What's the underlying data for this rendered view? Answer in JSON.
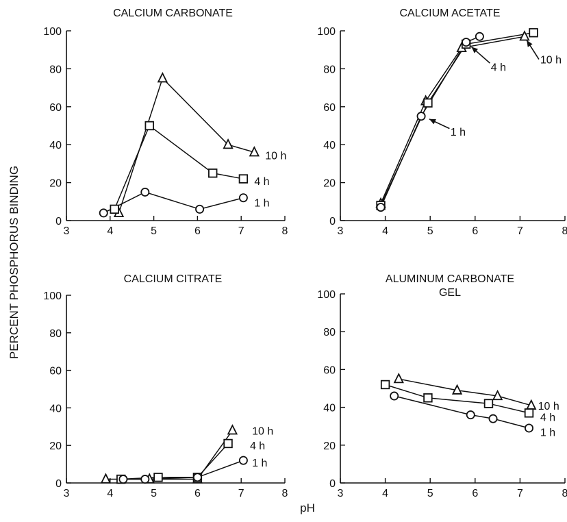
{
  "figure": {
    "ylabel": "PERCENT PHOSPHORUS BINDING",
    "xlabel": "pH"
  },
  "chart_data": [
    {
      "type": "line",
      "title": "CALCIUM CARBONATE",
      "xlim": [
        3,
        8
      ],
      "ylim": [
        0,
        100
      ],
      "xticks": [
        3,
        4,
        5,
        6,
        7,
        8
      ],
      "yticks": [
        0,
        20,
        40,
        60,
        80,
        100
      ],
      "ytick_labels_shown": true,
      "series": [
        {
          "name": "10 h",
          "marker": "triangle",
          "x": [
            4.2,
            5.2,
            6.7,
            7.3
          ],
          "y": [
            4,
            75,
            40,
            36
          ]
        },
        {
          "name": "4 h",
          "marker": "square",
          "x": [
            4.1,
            4.9,
            6.35,
            7.05
          ],
          "y": [
            6,
            50,
            25,
            22
          ]
        },
        {
          "name": "1 h",
          "marker": "circle",
          "x": [
            3.85,
            4.8,
            6.05,
            7.05
          ],
          "y": [
            4,
            15,
            6,
            12
          ]
        }
      ],
      "labels": [
        {
          "text": "10 h",
          "x": 7.55,
          "y": 34.5
        },
        {
          "text": "4 h",
          "x": 7.3,
          "y": 21
        },
        {
          "text": "1 h",
          "x": 7.3,
          "y": 9.5
        }
      ]
    },
    {
      "type": "line",
      "title": "CALCIUM ACETATE",
      "xlim": [
        3,
        8
      ],
      "ylim": [
        0,
        100
      ],
      "xticks": [
        3,
        4,
        5,
        6,
        7,
        8
      ],
      "yticks": [
        0,
        20,
        40,
        60,
        80,
        100
      ],
      "ytick_labels_shown": true,
      "series": [
        {
          "name": "10 h",
          "marker": "triangle",
          "x": [
            3.9,
            4.9,
            5.7,
            7.1
          ],
          "y": [
            9,
            63,
            91,
            97
          ]
        },
        {
          "name": "4 h",
          "marker": "square",
          "x": [
            3.9,
            4.95,
            5.8,
            7.3
          ],
          "y": [
            8,
            62,
            93,
            99
          ]
        },
        {
          "name": "1 h",
          "marker": "circle",
          "x": [
            3.9,
            4.8,
            5.8,
            6.1
          ],
          "y": [
            7,
            55,
            94,
            97
          ]
        }
      ],
      "labels": [
        {
          "text": "10 h",
          "x": 7.45,
          "y": 85
        },
        {
          "text": "4 h",
          "x": 6.35,
          "y": 81
        },
        {
          "text": "1 h",
          "x": 5.45,
          "y": 47
        }
      ]
    },
    {
      "type": "line",
      "title": "CALCIUM CITRATE",
      "xlim": [
        3,
        8
      ],
      "ylim": [
        0,
        100
      ],
      "xticks": [
        3,
        4,
        5,
        6,
        7,
        8
      ],
      "yticks": [
        0,
        20,
        40,
        60,
        80,
        100
      ],
      "ytick_labels_shown": true,
      "series": [
        {
          "name": "10 h",
          "marker": "triangle",
          "x": [
            3.9,
            4.9,
            6.0,
            6.8
          ],
          "y": [
            2,
            2,
            2,
            28
          ]
        },
        {
          "name": "4 h",
          "marker": "square",
          "x": [
            4.25,
            5.1,
            6.0,
            6.7
          ],
          "y": [
            2,
            3,
            3,
            21
          ]
        },
        {
          "name": "1 h",
          "marker": "circle",
          "x": [
            4.3,
            4.8,
            6.0,
            7.05
          ],
          "y": [
            2,
            2,
            3,
            12
          ]
        }
      ],
      "labels": [
        {
          "text": "10 h",
          "x": 7.25,
          "y": 28
        },
        {
          "text": "4 h",
          "x": 7.2,
          "y": 20
        },
        {
          "text": "1 h",
          "x": 7.25,
          "y": 11
        }
      ]
    },
    {
      "type": "line",
      "title": "ALUMINUM CARBONATE",
      "subtitle": "GEL",
      "xlim": [
        3,
        8
      ],
      "ylim": [
        0,
        100
      ],
      "xticks": [
        3,
        4,
        5,
        6,
        7,
        8
      ],
      "yticks": [
        0,
        20,
        40,
        60,
        80,
        100
      ],
      "ytick_labels_shown": true,
      "series": [
        {
          "name": "10 h",
          "marker": "triangle",
          "x": [
            4.3,
            5.6,
            6.5,
            7.25
          ],
          "y": [
            55,
            49,
            46,
            41
          ]
        },
        {
          "name": "4 h",
          "marker": "square",
          "x": [
            4.0,
            4.95,
            6.3,
            7.2
          ],
          "y": [
            52,
            45,
            42,
            37
          ]
        },
        {
          "name": "1 h",
          "marker": "circle",
          "x": [
            4.2,
            5.9,
            6.4,
            7.2
          ],
          "y": [
            46,
            36,
            34,
            29
          ]
        }
      ],
      "labels": [
        {
          "text": "10 h",
          "x": 7.4,
          "y": 41
        },
        {
          "text": "4 h",
          "x": 7.45,
          "y": 35
        },
        {
          "text": "1 h",
          "x": 7.45,
          "y": 27
        }
      ]
    }
  ]
}
